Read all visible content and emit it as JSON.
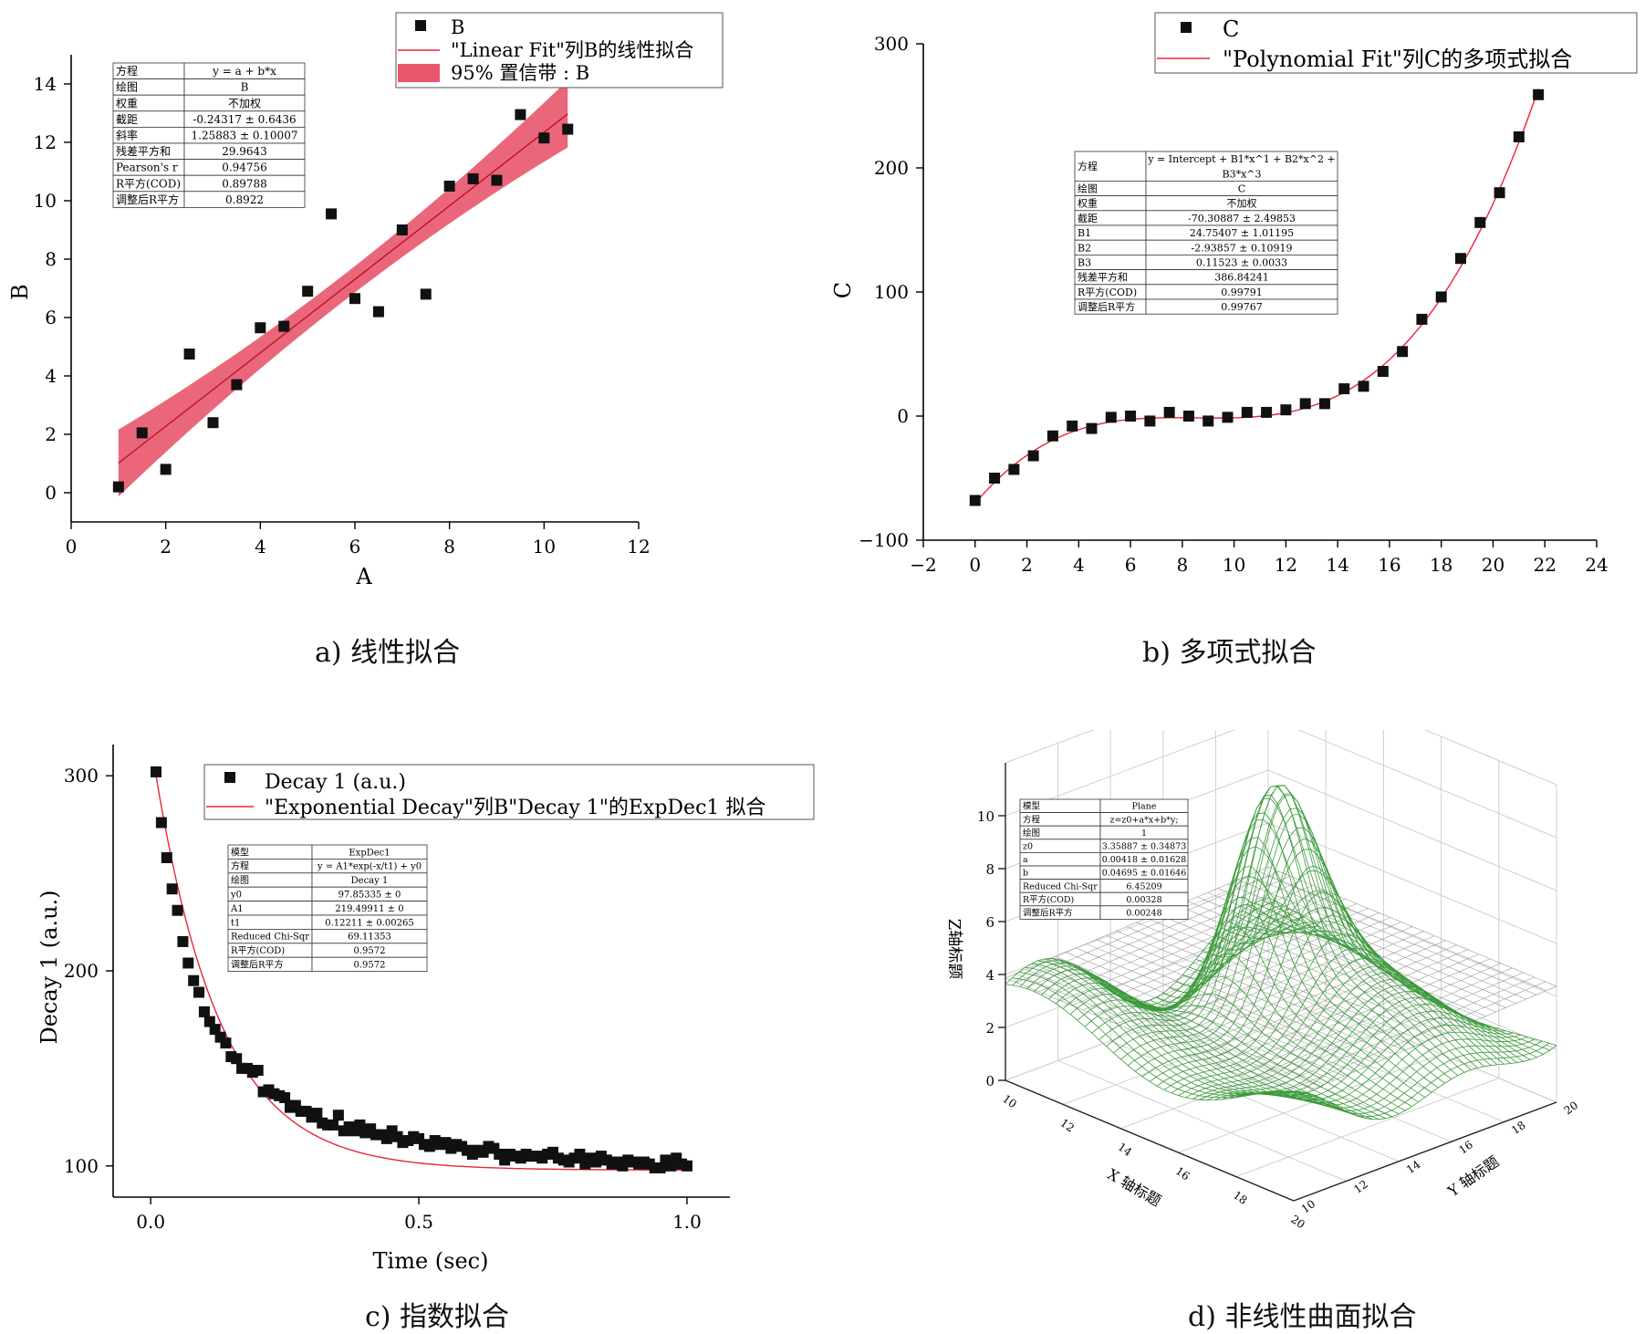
{
  "captions": {
    "a": "a) 线性拟合",
    "b": "b) 多项式拟合",
    "c": "c) 指数拟合",
    "d": "d) 非线性曲面拟合"
  },
  "colors": {
    "fit": "#e8253a",
    "band": "#e8576d",
    "surface": "#3a9a3a",
    "plane": "#9a9a9a",
    "marker": "#111111"
  },
  "chart_data": [
    {
      "id": "a",
      "type": "scatter",
      "xlabel": "A",
      "ylabel": "B",
      "xlim": [
        0,
        12
      ],
      "ylim": [
        -1,
        15
      ],
      "xticks": [
        "0",
        "2",
        "4",
        "6",
        "8",
        "10",
        "12"
      ],
      "yticks": [
        "0",
        "2",
        "4",
        "6",
        "8",
        "10",
        "12",
        "14"
      ],
      "legend": {
        "position": "top-right",
        "entries": [
          "B",
          "\"Linear Fit\"列B的线性拟合",
          "95% 置信带 : B"
        ]
      },
      "series": [
        {
          "name": "B",
          "x": [
            1,
            1.5,
            2,
            2.5,
            3,
            3.5,
            4,
            4.5,
            5,
            5.5,
            6,
            6.5,
            7,
            7.5,
            8,
            8.5,
            9,
            9.5,
            10,
            10.5
          ],
          "y": [
            0.2,
            2.05,
            0.8,
            4.75,
            2.4,
            3.7,
            5.65,
            5.7,
            6.9,
            9.55,
            6.65,
            6.2,
            9.0,
            6.8,
            10.5,
            10.75,
            10.7,
            12.95,
            12.15,
            12.45
          ]
        }
      ],
      "fit": {
        "intercept": -0.24317,
        "slope": 1.25883,
        "x_range": [
          1,
          10.5
        ],
        "band_halfwidth_ends": 1.15,
        "band_halfwidth_center": 0.45
      },
      "table": {
        "rows": [
          [
            "方程",
            "y = a + b*x"
          ],
          [
            "绘图",
            "B"
          ],
          [
            "权重",
            "不加权"
          ],
          [
            "截距",
            "-0.24317 ± 0.6436"
          ],
          [
            "斜率",
            "1.25883 ± 0.10007"
          ],
          [
            "残差平方和",
            "29.9643"
          ],
          [
            "Pearson's r",
            "0.94756"
          ],
          [
            "R平方(COD)",
            "0.89788"
          ],
          [
            "调整后R平方",
            "0.8922"
          ]
        ]
      }
    },
    {
      "id": "b",
      "type": "scatter",
      "xlabel": "",
      "ylabel": "C",
      "xlim": [
        -2,
        24
      ],
      "ylim": [
        -100,
        300
      ],
      "xticks": [
        "−2",
        "0",
        "2",
        "4",
        "6",
        "8",
        "10",
        "12",
        "14",
        "16",
        "18",
        "20",
        "22",
        "24"
      ],
      "yticks": [
        "−100",
        "0",
        "100",
        "200",
        "300"
      ],
      "legend": {
        "position": "top-right",
        "entries": [
          "C",
          "\"Polynomial Fit\"列C的多项式拟合"
        ]
      },
      "series": [
        {
          "name": "C",
          "x": [
            0,
            0.75,
            1.5,
            2.25,
            3,
            3.75,
            4.5,
            5.25,
            6,
            6.75,
            7.5,
            8.25,
            9,
            9.75,
            10.5,
            11.25,
            12,
            12.75,
            13.5,
            14.25,
            15,
            15.75,
            16.5,
            17.25,
            18,
            18.75,
            19.5,
            20.25,
            21,
            21.75
          ],
          "y": [
            -68,
            -50,
            -43,
            -32,
            -16,
            -8,
            -10,
            -1,
            0,
            -4,
            3,
            0,
            -4,
            -1,
            3,
            3,
            5,
            10,
            10,
            22,
            24,
            36,
            52,
            78,
            96,
            127,
            156,
            180,
            225,
            259
          ]
        }
      ],
      "fit": {
        "coefficients": [
          -70.30887,
          24.75407,
          -2.93857,
          0.11523
        ],
        "x_range": [
          0,
          21.75
        ]
      },
      "table": {
        "rows": [
          [
            "方程",
            "y = Intercept + B1*x^1 + B2*x^2 + B3*x^3"
          ],
          [
            "绘图",
            "C"
          ],
          [
            "权重",
            "不加权"
          ],
          [
            "截距",
            "-70.30887 ± 2.49853"
          ],
          [
            "B1",
            "24.75407 ± 1.01195"
          ],
          [
            "B2",
            "-2.93857 ± 0.10919"
          ],
          [
            "B3",
            "0.11523 ± 0.0033"
          ],
          [
            "残差平方和",
            "386.84241"
          ],
          [
            "R平方(COD)",
            "0.99791"
          ],
          [
            "调整后R平方",
            "0.99767"
          ]
        ]
      }
    },
    {
      "id": "c",
      "type": "scatter",
      "xlabel": "Time (sec)",
      "ylabel": "Decay 1 (a.u.)",
      "xlim": [
        -0.07,
        1.08
      ],
      "ylim": [
        84,
        316
      ],
      "xticks": [
        "0.0",
        "0.5",
        "1.0"
      ],
      "yticks": [
        "100",
        "200",
        "300"
      ],
      "legend": {
        "position": "top-right",
        "entries": [
          "Decay 1 (a.u.)",
          "\"Exponential Decay\"列B\"Decay 1\"的ExpDec1 拟合"
        ]
      },
      "series": [
        {
          "name": "Decay 1 (a.u.)",
          "x_start": 0.01,
          "x_step": 0.01,
          "count": 100,
          "y": [
            302,
            276,
            258,
            242,
            231,
            215,
            204,
            195,
            189,
            179,
            174,
            170,
            166,
            163,
            156,
            155,
            150,
            150,
            148,
            149,
            138,
            139,
            137,
            136,
            135,
            130,
            131,
            128,
            128,
            125,
            127,
            122,
            121,
            121,
            126,
            118,
            120,
            118,
            121,
            117,
            119,
            116,
            116,
            114,
            118,
            115,
            112,
            113,
            115,
            114,
            111,
            110,
            113,
            111,
            112,
            109,
            111,
            110,
            108,
            106,
            108,
            107,
            110,
            109,
            106,
            103,
            106,
            105,
            104,
            106,
            105,
            105,
            104,
            106,
            107,
            104,
            103,
            102,
            104,
            106,
            101,
            104,
            102,
            105,
            103,
            101,
            102,
            100,
            103,
            102,
            101,
            102,
            101,
            99,
            99,
            103,
            100,
            104,
            101,
            100
          ]
        }
      ],
      "fit": {
        "A1": 219.49911,
        "t1": 0.12211,
        "y0": 97.85335,
        "x_range": [
          0.01,
          1.0
        ]
      },
      "table": {
        "rows": [
          [
            "模型",
            "ExpDec1"
          ],
          [
            "方程",
            "y = A1*exp(-x/t1) + y0"
          ],
          [
            "绘图",
            "Decay 1"
          ],
          [
            "y0",
            "97.85335 ± 0"
          ],
          [
            "A1",
            "219.49911 ± 0"
          ],
          [
            "t1",
            "0.12211 ± 0.00265"
          ],
          [
            "Reduced Chi-Sqr",
            "69.11353"
          ],
          [
            "R平方(COD)",
            "0.9572"
          ],
          [
            "调整后R平方",
            "0.9572"
          ]
        ]
      }
    },
    {
      "id": "d",
      "type": "surface",
      "xlabel": "X 轴标题",
      "ylabel": "Y 轴标题",
      "zlabel": "Z轴标题",
      "zlim": [
        0,
        12
      ],
      "zticks": [
        "0",
        "2",
        "4",
        "6",
        "8",
        "10"
      ],
      "xticks": [
        "10",
        "12",
        "14",
        "16",
        "18",
        "20"
      ],
      "yticks": [
        "10",
        "12",
        "14",
        "16",
        "18",
        "20"
      ],
      "fit": {
        "z0": 3.35887,
        "a": 0.00418,
        "b": 0.04695
      },
      "table": {
        "rows": [
          [
            "模型",
            "Plane"
          ],
          [
            "方程",
            "z=z0+a*x+b*y;"
          ],
          [
            "绘图",
            "1"
          ],
          [
            "z0",
            "3.35887 ± 0.34873"
          ],
          [
            "a",
            "0.00418 ± 0.01628"
          ],
          [
            "b",
            "0.04695 ± 0.01646"
          ],
          [
            "Reduced Chi-Sqr",
            "6.45209"
          ],
          [
            "R平方(COD)",
            "0.00328"
          ],
          [
            "调整后R平方",
            "0.00248"
          ]
        ]
      }
    }
  ]
}
